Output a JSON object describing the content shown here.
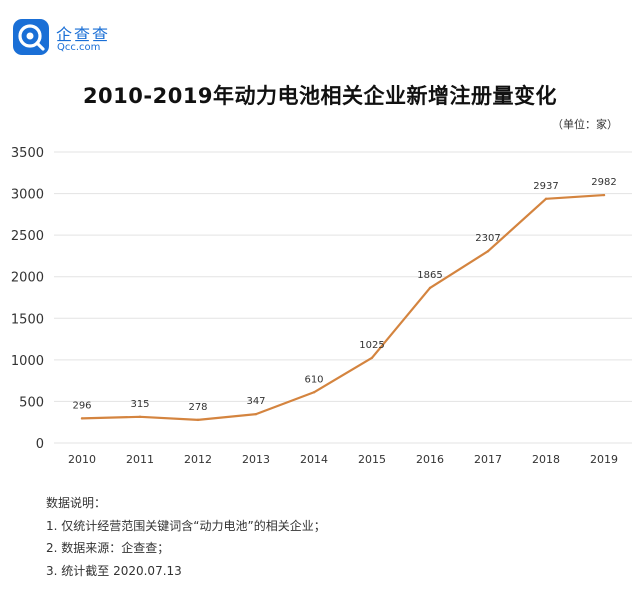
{
  "brand": {
    "name_cn": "企查查",
    "name_en": "Qcc.com",
    "logo_icon": "qcc-logo-icon",
    "color": "#1a6fd6"
  },
  "header": {
    "title": "2010-2019年动力电池相关企业新增注册量变化",
    "unit": "（单位：家）"
  },
  "notes": {
    "heading": "数据说明：",
    "items": [
      "1. 仅统计经营范围关键词含“动力电池”的相关企业；",
      "2. 数据来源：企查查；",
      "3. 统计截至 2020.07.13"
    ]
  },
  "chart_data": {
    "type": "line",
    "title": "2010-2019年动力电池相关企业新增注册量变化",
    "xlabel": "",
    "ylabel": "",
    "unit": "（单位：家）",
    "categories": [
      "2010",
      "2011",
      "2012",
      "2013",
      "2014",
      "2015",
      "2016",
      "2017",
      "2018",
      "2019"
    ],
    "series": [
      {
        "values": [
          296,
          315,
          278,
          347,
          610,
          1025,
          1865,
          2307,
          2937,
          2982
        ],
        "color": "#d4843f"
      }
    ],
    "yticks": [
      0,
      500,
      1000,
      1500,
      2000,
      2500,
      3000,
      3500
    ],
    "ylim": [
      0,
      3500
    ],
    "grid": true,
    "legend": "none"
  }
}
